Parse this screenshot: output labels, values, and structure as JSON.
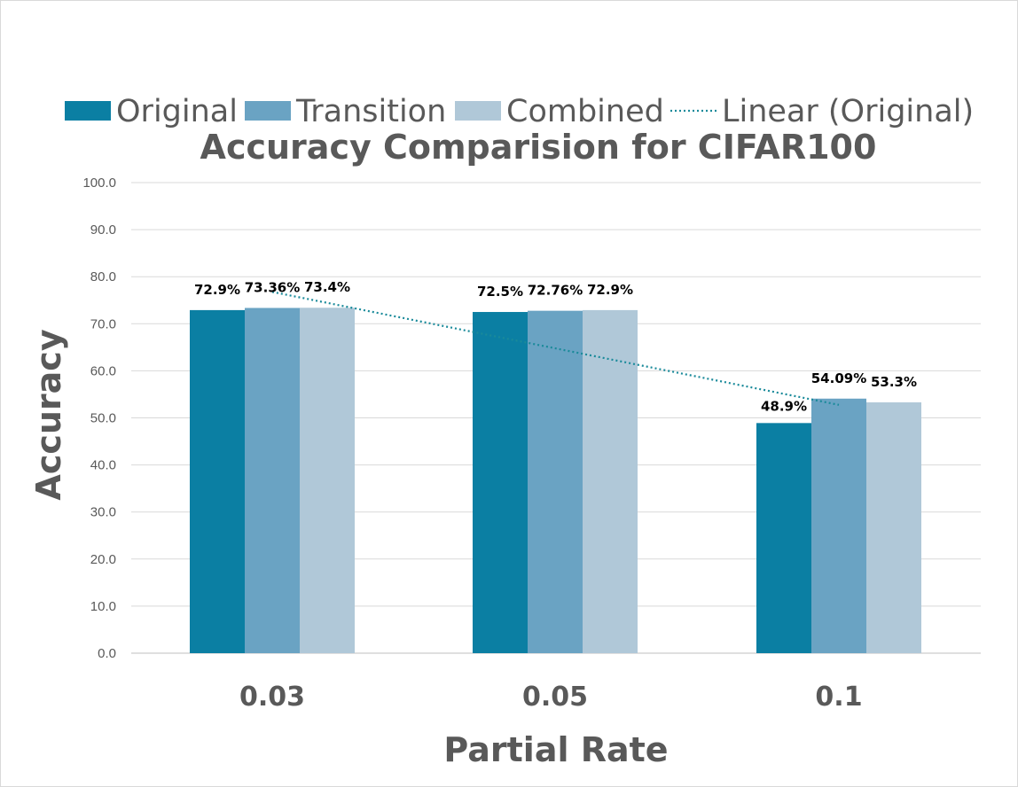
{
  "chart_data": {
    "type": "bar",
    "title": "Accuracy Comparision for CIFAR100",
    "xlabel": "Partial Rate",
    "ylabel": "Accuracy",
    "categories": [
      "0.03",
      "0.05",
      "0.1"
    ],
    "ylim": [
      0,
      100
    ],
    "yticks": [
      "0.0",
      "10.0",
      "20.0",
      "30.0",
      "40.0",
      "50.0",
      "60.0",
      "70.0",
      "80.0",
      "90.0",
      "100.0"
    ],
    "grid": true,
    "legend_position": "top",
    "series": [
      {
        "name": "Original",
        "values": [
          72.9,
          72.5,
          48.9
        ],
        "labels": [
          "72.9%",
          "72.5%",
          "48.9%"
        ],
        "color": "#0b7fa3"
      },
      {
        "name": "Transition",
        "values": [
          73.36,
          72.76,
          54.09
        ],
        "labels": [
          "73.36%",
          "72.76%",
          "54.09%"
        ],
        "color": "#6aa3c3"
      },
      {
        "name": "Combined",
        "values": [
          73.4,
          72.9,
          53.3
        ],
        "labels": [
          "73.4%",
          "72.9%",
          "53.3%"
        ],
        "color": "#b0c8d8"
      }
    ],
    "trendline": {
      "name": "Linear (Original)",
      "of_series": "Original",
      "type": "linear",
      "color": "#1a8a9a",
      "style": "dotted"
    }
  }
}
